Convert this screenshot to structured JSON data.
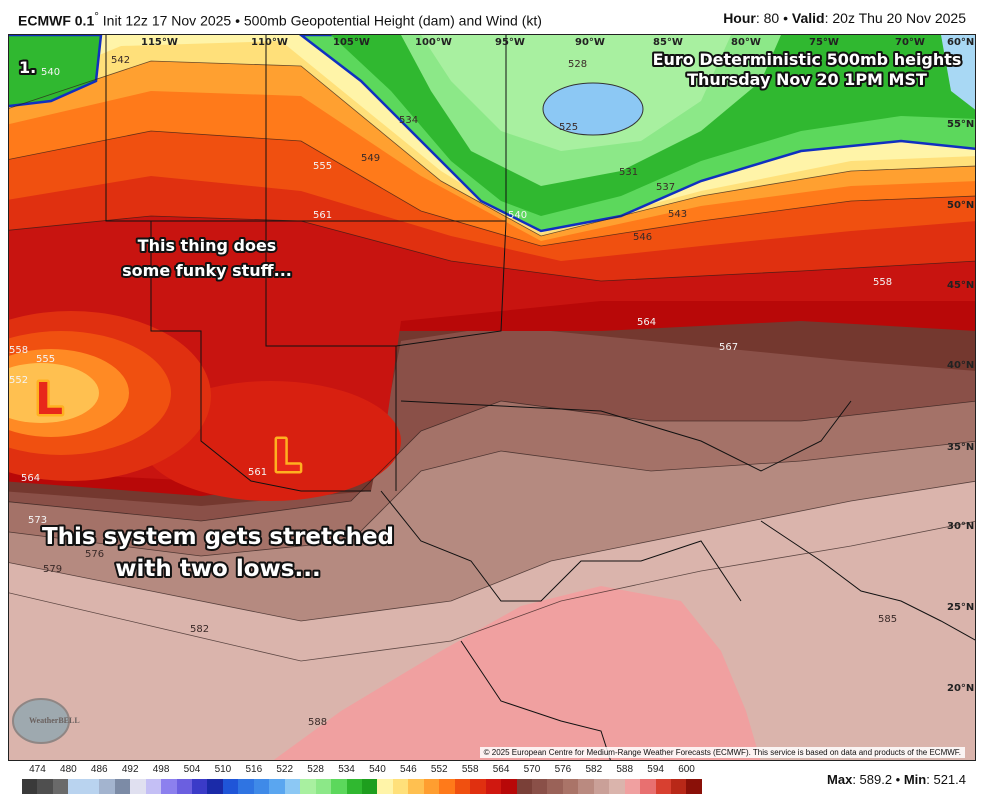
{
  "header": {
    "model": "ECMWF 0.1",
    "model_sup": "°",
    "description": "Init 12z 17 Nov 2025 • 500mb Geopotential Height (dam) and Wind (kt)",
    "hour_label": "Hour",
    "hour_value": ": 80 • ",
    "valid_label": "Valid",
    "valid_value": ": 20z Thu 20 Nov 2025"
  },
  "map": {
    "panel_number": "1.",
    "overlay_title_line1": "Euro Deterministic 500mb heights",
    "overlay_title_line2": "Thursday Nov 20 1PM MST",
    "annotation_1_line1": "This thing does",
    "annotation_1_line2": "some funky stuff...",
    "annotation_2_line1": "This system gets stretched",
    "annotation_2_line2": "with two lows...",
    "low_marker": "L",
    "low_colors": {
      "fill": "#e8281a",
      "outline": "#ffb020"
    },
    "longitudes": [
      "115°W",
      "110°W",
      "105°W",
      "100°W",
      "95°W",
      "90°W",
      "85°W",
      "80°W",
      "75°W",
      "70°W",
      "60°N"
    ],
    "latitudes": [
      "55°N",
      "50°N",
      "45°N",
      "40°N",
      "35°N",
      "30°N",
      "25°N",
      "20°N"
    ],
    "contour_labels": [
      "542",
      "540",
      "555",
      "549",
      "534",
      "561",
      "525",
      "528",
      "531",
      "537",
      "543",
      "546",
      "540",
      "558",
      "564",
      "567",
      "558",
      "555",
      "552",
      "564",
      "561",
      "573",
      "576",
      "579",
      "582",
      "585",
      "588"
    ],
    "logo_text": "WeatherBELL",
    "copyright": "© 2025 European Centre for Medium-Range Weather Forecasts (ECMWF). This service is based on data and products of the ECMWF."
  },
  "colorbar": {
    "labels": [
      "474",
      "480",
      "486",
      "492",
      "498",
      "504",
      "510",
      "516",
      "522",
      "528",
      "534",
      "540",
      "546",
      "552",
      "558",
      "564",
      "570",
      "576",
      "582",
      "588",
      "594",
      "600"
    ],
    "colors": [
      "#3a3a3a",
      "#4f4f4f",
      "#6a6a6a",
      "#b9d3ef",
      "#b9d3ef",
      "#a3b4cf",
      "#7c8ba6",
      "#e0e0f0",
      "#c4bff5",
      "#8c80ee",
      "#6b5fe0",
      "#3b3bc8",
      "#1a2aa8",
      "#1f55d8",
      "#2f74e2",
      "#3f8ae8",
      "#5aa6f0",
      "#8cc8f4",
      "#a8f0a0",
      "#8ce888",
      "#5cd85c",
      "#30b830",
      "#1e9e1e",
      "#fff4a8",
      "#ffe07a",
      "#ffc050",
      "#ff9e30",
      "#ff7a1a",
      "#f05010",
      "#e03010",
      "#d01810",
      "#b80808",
      "#7a4038",
      "#8a5048",
      "#9a6258",
      "#aa7468",
      "#ba8a80",
      "#caa098",
      "#dab4ac",
      "#f0a0a0",
      "#e87070",
      "#d84030",
      "#b82818",
      "#8a1008"
    ]
  },
  "stats": {
    "max_label": "Max",
    "max_value": ": 589.2 • ",
    "min_label": "Min",
    "min_value": ": 521.4"
  }
}
